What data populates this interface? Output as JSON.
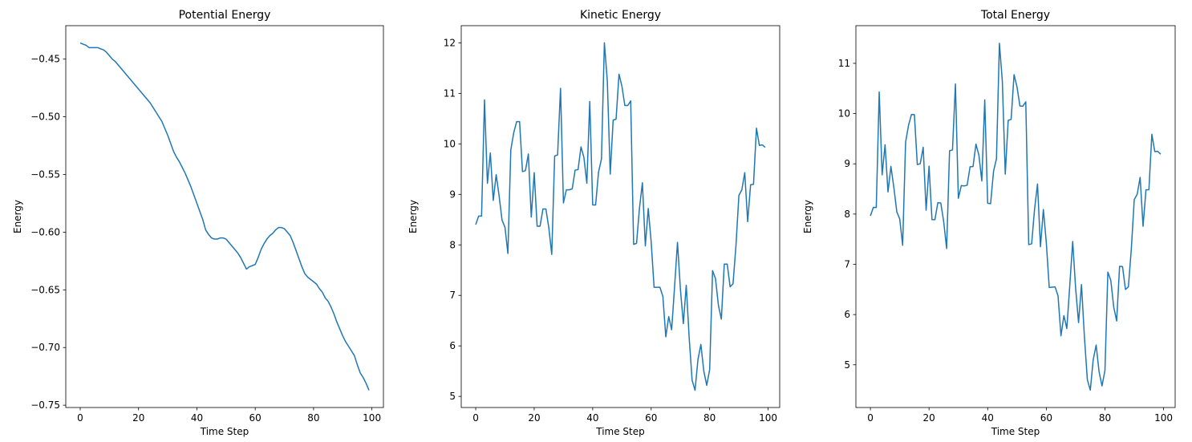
{
  "chart_data": [
    {
      "type": "line",
      "title": "Potential Energy",
      "xlabel": "Time Step",
      "ylabel": "Energy",
      "x": [
        0,
        1,
        2,
        3,
        4,
        5,
        6,
        7,
        8,
        9,
        10,
        11,
        12,
        13,
        14,
        15,
        16,
        17,
        18,
        19,
        20,
        21,
        22,
        23,
        24,
        25,
        26,
        27,
        28,
        29,
        30,
        31,
        32,
        33,
        34,
        35,
        36,
        37,
        38,
        39,
        40,
        41,
        42,
        43,
        44,
        45,
        46,
        47,
        48,
        49,
        50,
        51,
        52,
        53,
        54,
        55,
        56,
        57,
        58,
        59,
        60,
        61,
        62,
        63,
        64,
        65,
        66,
        67,
        68,
        69,
        70,
        71,
        72,
        73,
        74,
        75,
        76,
        77,
        78,
        79,
        80,
        81,
        82,
        83,
        84,
        85,
        86,
        87,
        88,
        89,
        90,
        91,
        92,
        93,
        94,
        95,
        96,
        97,
        98,
        99
      ],
      "series": [
        {
          "color": "#1f77b4",
          "values": [
            -0.436,
            -0.437,
            -0.438,
            -0.44,
            -0.44,
            -0.44,
            -0.44,
            -0.441,
            -0.442,
            -0.444,
            -0.447,
            -0.45,
            -0.452,
            -0.455,
            -0.458,
            -0.461,
            -0.464,
            -0.467,
            -0.47,
            -0.473,
            -0.476,
            -0.479,
            -0.482,
            -0.485,
            -0.488,
            -0.492,
            -0.496,
            -0.5,
            -0.504,
            -0.51,
            -0.516,
            -0.523,
            -0.53,
            -0.535,
            -0.539,
            -0.544,
            -0.549,
            -0.555,
            -0.561,
            -0.568,
            -0.575,
            -0.582,
            -0.589,
            -0.598,
            -0.602,
            -0.605,
            -0.606,
            -0.606,
            -0.605,
            -0.605,
            -0.606,
            -0.609,
            -0.612,
            -0.615,
            -0.618,
            -0.622,
            -0.627,
            -0.632,
            -0.63,
            -0.629,
            -0.628,
            -0.622,
            -0.615,
            -0.61,
            -0.606,
            -0.603,
            -0.601,
            -0.598,
            -0.596,
            -0.596,
            -0.597,
            -0.6,
            -0.603,
            -0.609,
            -0.616,
            -0.623,
            -0.63,
            -0.636,
            -0.639,
            -0.641,
            -0.643,
            -0.645,
            -0.649,
            -0.652,
            -0.657,
            -0.66,
            -0.665,
            -0.671,
            -0.678,
            -0.684,
            -0.69,
            -0.695,
            -0.699,
            -0.703,
            -0.707,
            -0.715,
            -0.722,
            -0.726,
            -0.731,
            -0.737
          ]
        }
      ],
      "xlim": [
        -4.95,
        103.95
      ],
      "ylim": [
        -0.752,
        -0.421
      ],
      "xticks": [
        0,
        20,
        40,
        60,
        80,
        100
      ],
      "yticks": [
        {
          "value": -0.75,
          "label": "−0.75"
        },
        {
          "value": -0.7,
          "label": "−0.70"
        },
        {
          "value": -0.65,
          "label": "−0.65"
        },
        {
          "value": -0.6,
          "label": "−0.60"
        },
        {
          "value": -0.55,
          "label": "−0.55"
        },
        {
          "value": -0.5,
          "label": "−0.50"
        },
        {
          "value": -0.45,
          "label": "−0.45"
        }
      ]
    },
    {
      "type": "line",
      "title": "Kinetic Energy",
      "xlabel": "Time Step",
      "ylabel": "Energy",
      "x": [
        0,
        1,
        2,
        3,
        4,
        5,
        6,
        7,
        8,
        9,
        10,
        11,
        12,
        13,
        14,
        15,
        16,
        17,
        18,
        19,
        20,
        21,
        22,
        23,
        24,
        25,
        26,
        27,
        28,
        29,
        30,
        31,
        32,
        33,
        34,
        35,
        36,
        37,
        38,
        39,
        40,
        41,
        42,
        43,
        44,
        45,
        46,
        47,
        48,
        49,
        50,
        51,
        52,
        53,
        54,
        55,
        56,
        57,
        58,
        59,
        60,
        61,
        62,
        63,
        64,
        65,
        66,
        67,
        68,
        69,
        70,
        71,
        72,
        73,
        74,
        75,
        76,
        77,
        78,
        79,
        80,
        81,
        82,
        83,
        84,
        85,
        86,
        87,
        88,
        89,
        90,
        91,
        92,
        93,
        94,
        95,
        96,
        97,
        98,
        99
      ],
      "series": [
        {
          "color": "#1f77b4",
          "values": [
            8.4,
            8.57,
            8.57,
            10.87,
            9.22,
            9.82,
            8.88,
            9.39,
            8.97,
            8.49,
            8.35,
            7.83,
            9.88,
            10.22,
            10.44,
            10.44,
            9.45,
            9.47,
            9.8,
            8.55,
            9.43,
            8.37,
            8.37,
            8.71,
            8.71,
            8.34,
            7.81,
            9.76,
            9.78,
            11.1,
            8.83,
            9.09,
            9.09,
            9.11,
            9.48,
            9.49,
            9.94,
            9.73,
            9.22,
            10.84,
            8.79,
            8.79,
            9.44,
            9.7,
            12.0,
            11.25,
            9.4,
            10.47,
            10.49,
            11.38,
            11.14,
            10.76,
            10.76,
            10.85,
            8.01,
            8.03,
            8.73,
            9.23,
            7.98,
            8.72,
            8.06,
            7.16,
            7.16,
            7.16,
            6.98,
            6.18,
            6.58,
            6.32,
            7.17,
            8.05,
            7.12,
            6.44,
            7.2,
            6.16,
            5.32,
            5.12,
            5.73,
            6.03,
            5.5,
            5.22,
            5.53,
            7.49,
            7.33,
            6.8,
            6.53,
            7.62,
            7.62,
            7.17,
            7.23,
            7.99,
            8.98,
            9.09,
            9.43,
            8.46,
            9.19,
            9.2,
            10.31,
            9.97,
            9.98,
            9.93
          ]
        }
      ],
      "xlim": [
        -4.95,
        103.95
      ],
      "ylim": [
        4.78,
        12.34
      ],
      "xticks": [
        0,
        20,
        40,
        60,
        80,
        100
      ],
      "yticks": [
        5,
        6,
        7,
        8,
        9,
        10,
        11,
        12
      ]
    },
    {
      "type": "line",
      "title": "Total Energy",
      "xlabel": "Time Step",
      "ylabel": "Energy",
      "x": [
        0,
        1,
        2,
        3,
        4,
        5,
        6,
        7,
        8,
        9,
        10,
        11,
        12,
        13,
        14,
        15,
        16,
        17,
        18,
        19,
        20,
        21,
        22,
        23,
        24,
        25,
        26,
        27,
        28,
        29,
        30,
        31,
        32,
        33,
        34,
        35,
        36,
        37,
        38,
        39,
        40,
        41,
        42,
        43,
        44,
        45,
        46,
        47,
        48,
        49,
        50,
        51,
        52,
        53,
        54,
        55,
        56,
        57,
        58,
        59,
        60,
        61,
        62,
        63,
        64,
        65,
        66,
        67,
        68,
        69,
        70,
        71,
        72,
        73,
        74,
        75,
        76,
        77,
        78,
        79,
        80,
        81,
        82,
        83,
        84,
        85,
        86,
        87,
        88,
        89,
        90,
        91,
        92,
        93,
        94,
        95,
        96,
        97,
        98,
        99
      ],
      "series": [
        {
          "color": "#1f77b4",
          "values": [
            7.964,
            8.133,
            8.132,
            10.43,
            8.78,
            9.38,
            8.44,
            8.949,
            8.528,
            8.046,
            7.903,
            7.38,
            9.428,
            9.765,
            9.982,
            9.979,
            8.986,
            9.003,
            9.33,
            8.077,
            8.954,
            7.891,
            7.888,
            8.225,
            8.222,
            7.848,
            7.314,
            9.26,
            9.276,
            10.59,
            8.314,
            8.567,
            8.56,
            8.575,
            8.941,
            8.946,
            9.391,
            9.175,
            8.659,
            10.272,
            8.215,
            8.208,
            8.851,
            9.102,
            11.398,
            10.645,
            8.794,
            9.864,
            9.885,
            10.775,
            10.534,
            10.151,
            10.148,
            10.235,
            7.392,
            7.408,
            8.103,
            8.598,
            7.35,
            8.091,
            7.432,
            6.538,
            6.545,
            6.55,
            6.374,
            5.577,
            5.979,
            5.722,
            6.574,
            7.454,
            6.523,
            5.84,
            6.597,
            5.551,
            4.704,
            4.497,
            5.1,
            5.394,
            4.861,
            4.579,
            4.887,
            6.845,
            6.681,
            6.148,
            5.873,
            6.96,
            6.955,
            6.499,
            6.552,
            7.306,
            8.29,
            8.395,
            8.731,
            7.757,
            8.483,
            8.485,
            9.588,
            9.244,
            9.249,
            9.193
          ]
        }
      ],
      "xlim": [
        -4.95,
        103.95
      ],
      "ylim": [
        4.15,
        11.75
      ],
      "xticks": [
        0,
        20,
        40,
        60,
        80,
        100
      ],
      "yticks": [
        5,
        6,
        7,
        8,
        9,
        10,
        11
      ]
    }
  ]
}
